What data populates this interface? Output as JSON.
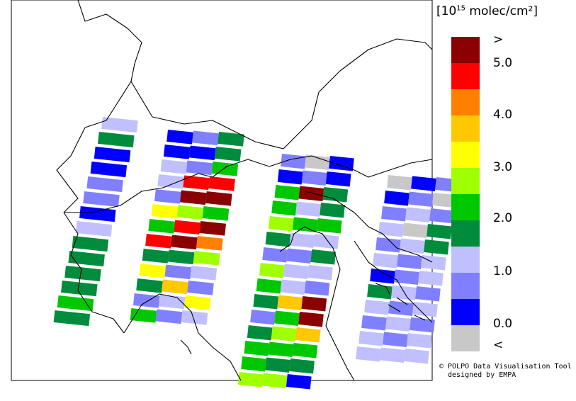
{
  "legend": {
    "title_prefix": "[10",
    "title_exp": "15",
    "title_suffix": " molec/cm²]",
    "labels": [
      ">",
      "5.0",
      "4.0",
      "3.0",
      "2.0",
      "1.0",
      "0.0",
      "<"
    ],
    "colors": [
      "#8b0000",
      "#ff0000",
      "#ff8000",
      "#ffc800",
      "#ffff00",
      "#a0ff00",
      "#00c800",
      "#008c3c",
      "#c0c0ff",
      "#8080ff",
      "#0000ff",
      "#c8c8c8"
    ],
    "color_bins": [
      ">5.0",
      "4.5–5.0",
      "4.0–4.5",
      "3.5–4.0",
      "3.0–3.5",
      "2.5–3.0",
      "2.0–2.5",
      "1.5–2.0",
      "1.0–1.5",
      "0.5–1.0",
      "0.0–0.5",
      "<0.0"
    ]
  },
  "credit": {
    "line1": "© POLPO Data Visualisation Tool",
    "line2": "designed by EMPA"
  },
  "swaths": [
    {
      "id": "swath-1",
      "cells": [
        8,
        7,
        10,
        10,
        9,
        9,
        10,
        8,
        7,
        7,
        7,
        7,
        6,
        7
      ]
    },
    {
      "id": "swath-2",
      "cells": [
        10,
        9,
        7,
        10,
        10,
        7,
        8,
        9,
        6,
        8,
        1,
        1,
        9,
        0,
        0,
        4,
        5,
        6,
        6,
        1,
        0,
        1,
        0,
        2,
        7,
        7,
        5,
        4,
        9,
        8,
        7,
        3,
        9,
        9,
        8,
        4,
        6,
        9,
        8
      ]
    },
    {
      "id": "swath-3",
      "cells": [
        9,
        11,
        10,
        10,
        9,
        10,
        6,
        0,
        7,
        6,
        8,
        7,
        5,
        6,
        6,
        7,
        8,
        8,
        9,
        9,
        7,
        5,
        8,
        8,
        6,
        8,
        9,
        7,
        3,
        0,
        9,
        6,
        0,
        7,
        5,
        3,
        6,
        6,
        6,
        6,
        7,
        7,
        5,
        5,
        10
      ]
    },
    {
      "id": "swath-4",
      "cells": [
        11,
        10,
        9,
        10,
        9,
        11,
        9,
        8,
        9,
        8,
        11,
        7,
        9,
        8,
        7,
        8,
        9,
        8,
        10,
        9,
        8,
        7,
        8,
        9,
        8,
        9,
        8,
        9,
        8,
        9,
        8,
        9,
        8,
        8,
        8,
        8
      ]
    }
  ]
}
